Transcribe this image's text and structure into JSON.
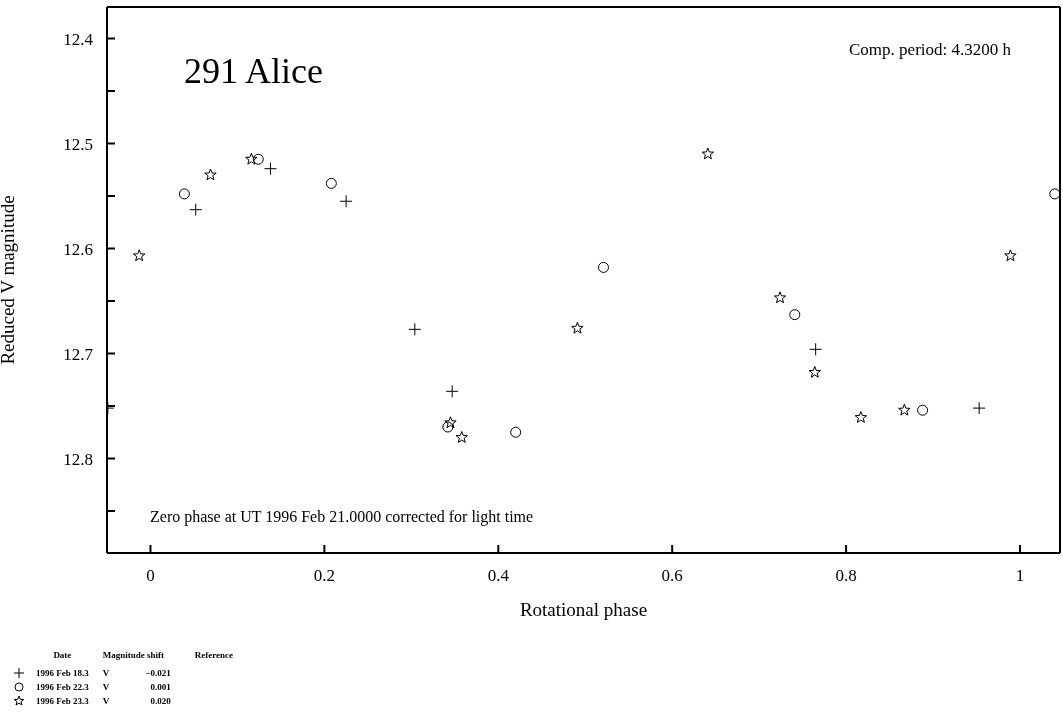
{
  "chart_data": {
    "type": "scatter",
    "title": "291 Alice",
    "xlabel": "Rotational phase",
    "ylabel": "Reduced V magnitude",
    "xlim": [
      -0.05,
      1.046
    ],
    "xticks": [
      0,
      0.2,
      0.4,
      0.6,
      0.8,
      1
    ],
    "ylim": [
      12.89,
      12.37
    ],
    "yticks": [
      {
        "value": 12.4,
        "label": "12.4"
      },
      {
        "value": 12.45,
        "label": null
      },
      {
        "value": 12.5,
        "label": "12.5"
      },
      {
        "value": 12.55,
        "label": null
      },
      {
        "value": 12.6,
        "label": "12.6"
      },
      {
        "value": 12.65,
        "label": null
      },
      {
        "value": 12.7,
        "label": "12.7"
      },
      {
        "value": 12.75,
        "label": null
      },
      {
        "value": 12.8,
        "label": "12.8"
      },
      {
        "value": 12.85,
        "label": null
      }
    ],
    "legend": "bottom left",
    "annotations": [
      "Comp. period:  4.3200 h",
      "Zero phase at UT 1996 Feb 21.0000 corrected for light time",
      "Date",
      "Magnitude shift",
      "Reference",
      "V",
      "−0.021",
      "V",
      "0.001",
      "V",
      "0.020"
    ],
    "series": [
      {
        "name": "1996 Feb 18.3",
        "color": "#000000",
        "marker": "cross",
        "x": [
          -0.049,
          0.052,
          0.138,
          0.225,
          0.304,
          0.347,
          0.765,
          0.953
        ],
        "values": [
          12.752,
          12.563,
          12.524,
          12.555,
          12.677,
          12.736,
          12.696,
          12.752
        ]
      },
      {
        "name": "1996 Feb 22.3",
        "color": "#000000",
        "marker": "circle",
        "x": [
          0.039,
          0.124,
          0.208,
          0.342,
          0.42,
          0.521,
          0.741,
          0.888,
          1.04
        ],
        "values": [
          12.548,
          12.515,
          12.538,
          12.77,
          12.775,
          12.618,
          12.663,
          12.754,
          12.548
        ]
      },
      {
        "name": "1996 Feb 23.3",
        "color": "#000000",
        "marker": "star",
        "x": [
          -0.013,
          0.069,
          0.116,
          0.345,
          0.358,
          0.491,
          0.641,
          0.724,
          0.764,
          0.817,
          0.867,
          0.989
        ],
        "values": [
          12.607,
          12.53,
          12.515,
          12.766,
          12.78,
          12.676,
          12.51,
          12.647,
          12.718,
          12.761,
          12.754,
          12.607
        ]
      }
    ]
  }
}
